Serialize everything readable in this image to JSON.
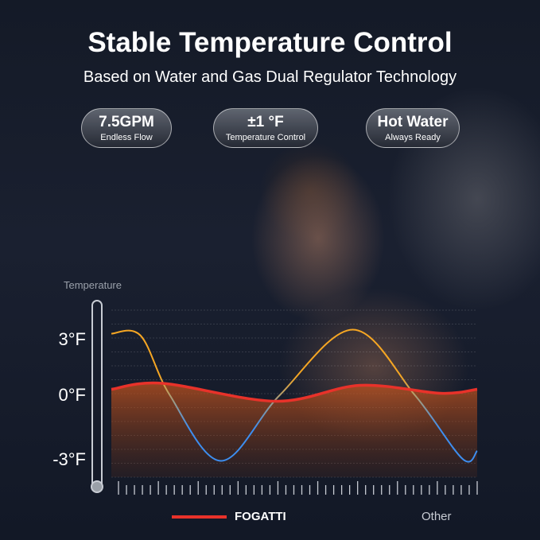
{
  "header": {
    "title": "Stable Temperature Control",
    "subtitle": "Based on Water and Gas Dual Regulator Technology"
  },
  "badges": [
    {
      "value": "7.5GPM",
      "label": "Endless Flow"
    },
    {
      "value": "±1 °F",
      "label": "Temperature Control"
    },
    {
      "value": "Hot Water",
      "label": "Always Ready"
    }
  ],
  "chart_data": {
    "type": "line",
    "ylabel": "Temperature",
    "yticks": [
      "3°F",
      "0°F",
      "-3°F"
    ],
    "ylim": [
      -4,
      4
    ],
    "grid": true,
    "legend_placement": "bottom",
    "series": [
      {
        "name": "FOGATTI",
        "color": "#e8322a",
        "points": [
          [
            0,
            0.3
          ],
          [
            14,
            0.6
          ],
          [
            45,
            -0.3
          ],
          [
            68,
            0.5
          ],
          [
            90,
            0.1
          ],
          [
            100,
            0.3
          ]
        ]
      },
      {
        "name": "Other",
        "color_start": "#f5a623",
        "color_end": "#3d8ef0",
        "points": [
          [
            0,
            3.1
          ],
          [
            8,
            3.0
          ],
          [
            16,
            0
          ],
          [
            30,
            -3.3
          ],
          [
            46,
            0
          ],
          [
            66,
            3.3
          ],
          [
            83,
            0
          ],
          [
            96,
            -3.2
          ],
          [
            100,
            -2.8
          ]
        ]
      }
    ]
  }
}
